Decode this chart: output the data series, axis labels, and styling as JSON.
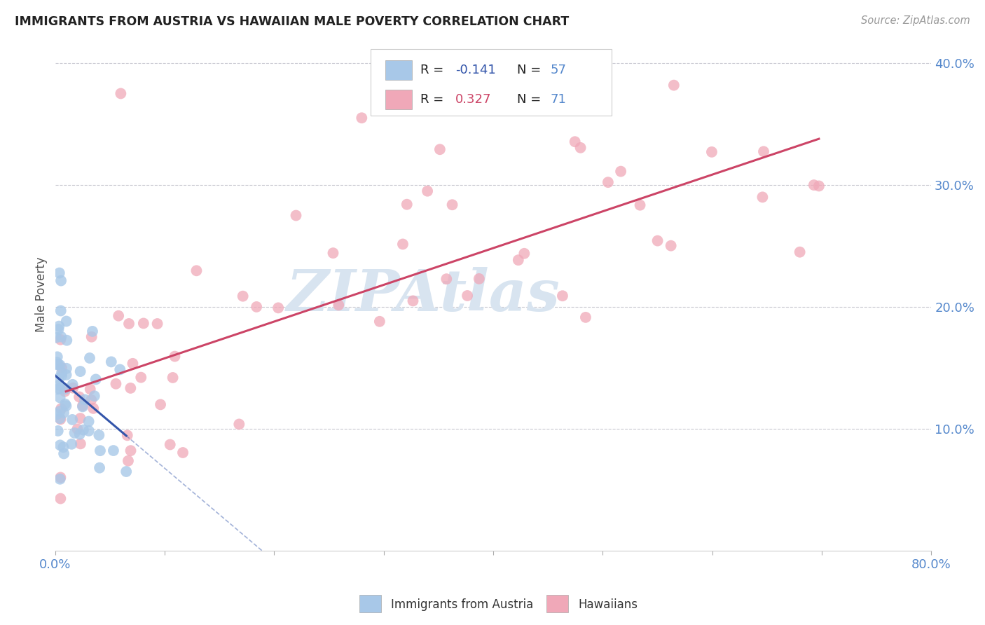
{
  "title": "IMMIGRANTS FROM AUSTRIA VS HAWAIIAN MALE POVERTY CORRELATION CHART",
  "source": "Source: ZipAtlas.com",
  "ylabel_label": "Male Poverty",
  "austria_R": -0.141,
  "austria_N": 57,
  "hawaii_R": 0.327,
  "hawaii_N": 71,
  "austria_color": "#a8c8e8",
  "hawaii_color": "#f0a8b8",
  "austria_line_color": "#3355aa",
  "hawaii_line_color": "#cc4466",
  "background_color": "#ffffff",
  "grid_color": "#c8c8d0",
  "title_color": "#222222",
  "axis_tick_color": "#5588cc",
  "r_label_color": "#222222",
  "n_value_color": "#5588cc",
  "watermark": "ZIPAtlas",
  "watermark_color": "#d8e4f0",
  "legend_edge_color": "#cccccc"
}
